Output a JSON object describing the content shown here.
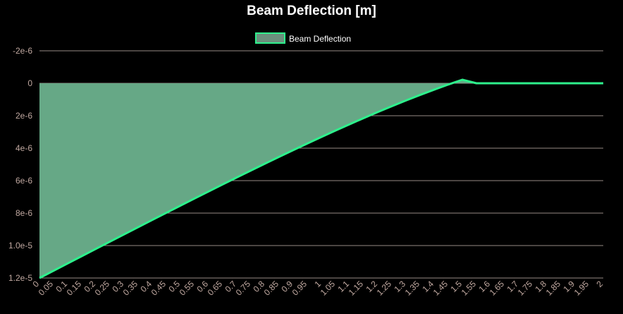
{
  "chart_data": {
    "type": "area",
    "title": "Beam Deflection [m]",
    "legend": {
      "position": "top-center",
      "label": "Beam Deflection"
    },
    "xlabel": "",
    "ylabel": "",
    "y_reversed": true,
    "ylim": [
      -2e-06,
      1.2e-05
    ],
    "y_ticks": [
      "-2e-6",
      "0",
      "2e-6",
      "4e-6",
      "6e-6",
      "8e-6",
      "1.0e-5",
      "1.2e-5"
    ],
    "x_ticks": [
      "0",
      "0.05",
      "0.1",
      "0.15",
      "0.2",
      "0.25",
      "0.3",
      "0.35",
      "0.4",
      "0.45",
      "0.5",
      "0.55",
      "0.6",
      "0.65",
      "0.7",
      "0.75",
      "0.8",
      "0.85",
      "0.9",
      "0.95",
      "1",
      "1.05",
      "1.1",
      "1.15",
      "1.2",
      "1.25",
      "1.3",
      "1.35",
      "1.4",
      "1.45",
      "1.5",
      "1.55",
      "1.6",
      "1.65",
      "1.7",
      "1.75",
      "1.8",
      "1.85",
      "1.9",
      "1.95",
      "2"
    ],
    "grid": true,
    "colors": {
      "line": "#2ef08c",
      "fill": "#66a886",
      "grid": "#c8b8b0",
      "tick": "#c0a8a0",
      "legend_box": "#6b8f7d"
    },
    "series": [
      {
        "name": "Beam Deflection",
        "x": [
          0,
          0.05,
          0.1,
          0.15,
          0.2,
          0.25,
          0.3,
          0.35,
          0.4,
          0.45,
          0.5,
          0.55,
          0.6,
          0.65,
          0.7,
          0.75,
          0.8,
          0.85,
          0.9,
          0.95,
          1,
          1.05,
          1.1,
          1.15,
          1.2,
          1.25,
          1.3,
          1.35,
          1.4,
          1.45,
          1.5,
          1.55,
          1.6,
          1.65,
          1.7,
          1.75,
          1.8,
          1.85,
          1.9,
          1.95,
          2
        ],
        "values": [
          1.2e-05,
          1.1551e-05,
          1.1101e-05,
          1.0653e-05,
          1.0204e-05,
          9.757e-06,
          9.311e-06,
          8.866e-06,
          8.422e-06,
          7.98e-06,
          7.539e-06,
          7.101e-06,
          6.665e-06,
          6.232e-06,
          5.802e-06,
          5.375e-06,
          4.952e-06,
          4.534e-06,
          4.12e-06,
          3.712e-06,
          3.31e-06,
          2.914e-06,
          2.526e-06,
          2.146e-06,
          1.774e-06,
          1.412e-06,
          1.06e-06,
          7.2e-07,
          3.93e-07,
          8e-08,
          -2.18e-07,
          0.0,
          0.0,
          0.0,
          0.0,
          0.0,
          0.0,
          0.0,
          0.0,
          0.0,
          0.0
        ]
      }
    ]
  }
}
